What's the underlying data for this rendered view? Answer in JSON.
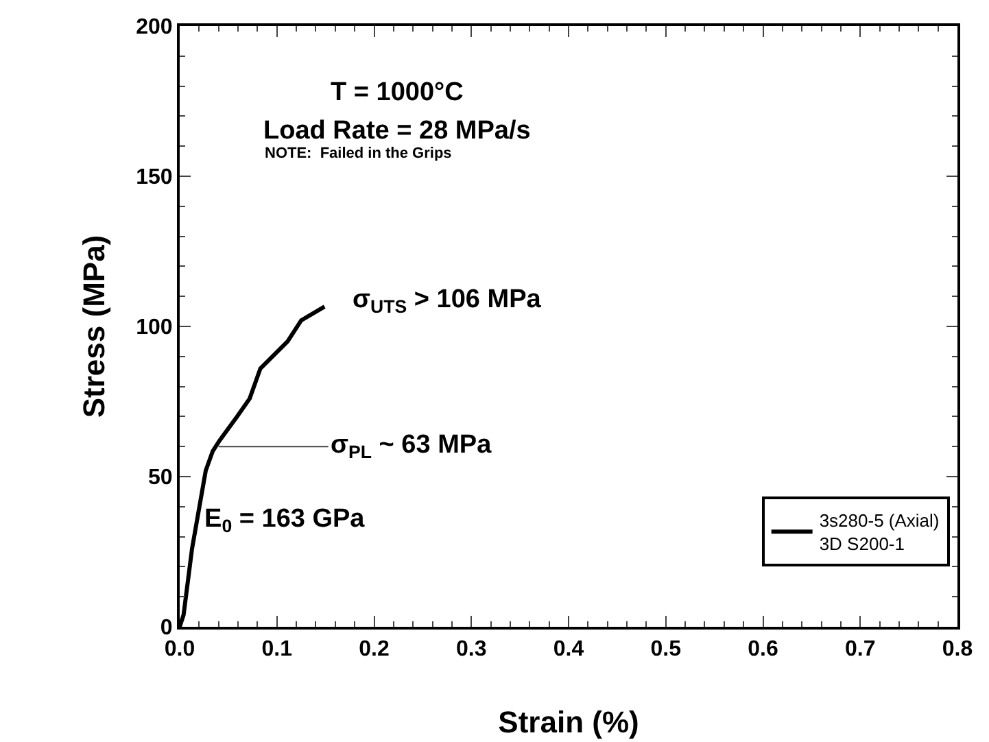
{
  "chart_data": {
    "type": "line",
    "xlabel": "Strain (%)",
    "ylabel": "Stress (MPa)",
    "x": [
      0,
      0.004,
      0.0127,
      0.0268,
      0.034,
      0.041,
      0.059,
      0.072,
      0.083,
      0.111,
      0.125,
      0.149
    ],
    "series": [
      {
        "name": "3s280-5 (Axial)\n3D S200-1",
        "color": "#000000",
        "values": [
          0,
          4,
          26,
          52,
          58.5,
          62,
          70,
          76,
          86,
          95,
          102,
          106.6
        ]
      }
    ],
    "xlim": [
      0,
      0.8
    ],
    "xticks": [
      {
        "value": 0,
        "label": "0.0"
      },
      0.1,
      0.2,
      0.3,
      0.4,
      0.5,
      0.6,
      0.7,
      0.8
    ],
    "ylim": [
      0,
      200
    ],
    "yticks": [
      0,
      50,
      100,
      150,
      200
    ],
    "grid": false,
    "legend": "bottom right",
    "marker": "none",
    "line_style": "solid",
    "annotations": [
      "T = 1000°C",
      "Load Rate = 28 MPa/s",
      "NOTE:  Failed in the Grips",
      {
        "text": "σ$_{UTS}$ > 106 MPa",
        "x": 0.149,
        "y": 106.6
      },
      {
        "text": "σ$_{PL}$ ~ 63 MPa",
        "x": 0.04,
        "y": 60
      },
      "E$_{0}$ = 163 GPa"
    ]
  }
}
